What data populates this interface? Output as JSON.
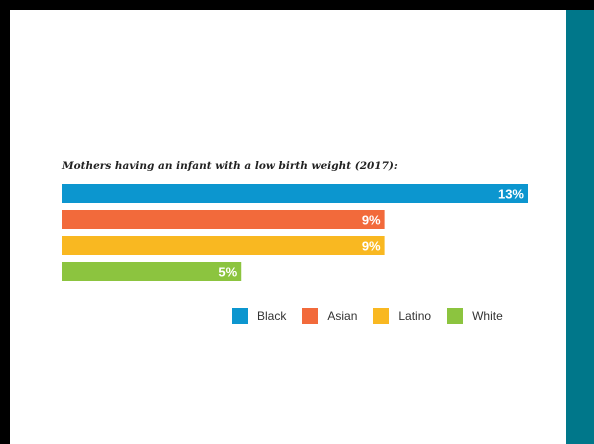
{
  "colors": {
    "background": "#000000",
    "panel": "#ffffff",
    "side_strip": "#00778a"
  },
  "chart_data": {
    "type": "bar",
    "orientation": "horizontal",
    "title": "Mothers having an infant with a low birth weight (2017):",
    "categories": [
      "Black",
      "Asian",
      "Latino",
      "White"
    ],
    "values": [
      13,
      9,
      9,
      5
    ],
    "value_labels": [
      "13%",
      "9%",
      "9%",
      "5%"
    ],
    "unit": "%",
    "colors": [
      "#0c96cf",
      "#f26a3b",
      "#f9b821",
      "#8cc43f"
    ],
    "xlim": [
      0,
      13
    ],
    "grid": false,
    "legend_position": "bottom-right",
    "legend": [
      {
        "label": "Black",
        "color": "#0c96cf"
      },
      {
        "label": "Asian",
        "color": "#f26a3b"
      },
      {
        "label": "Latino",
        "color": "#f9b821"
      },
      {
        "label": "White",
        "color": "#8cc43f"
      }
    ]
  }
}
